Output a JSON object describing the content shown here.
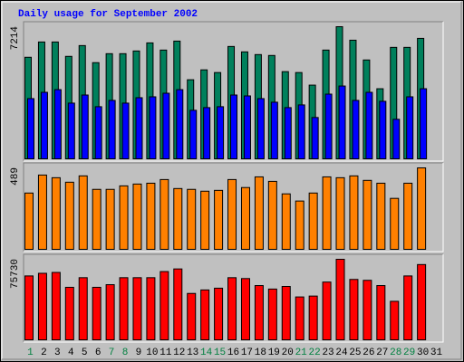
{
  "chart_data": {
    "type": "bar",
    "title": "Daily usage for September 2002",
    "title_color": "#0000ff",
    "categories": [
      "1",
      "2",
      "3",
      "4",
      "5",
      "6",
      "7",
      "8",
      "9",
      "10",
      "11",
      "12",
      "13",
      "14",
      "15",
      "16",
      "17",
      "18",
      "19",
      "20",
      "21",
      "22",
      "23",
      "24",
      "25",
      "26",
      "27",
      "28",
      "29",
      "30",
      "31"
    ],
    "category_label_colors": [
      "#008040",
      "#000000",
      "#000000",
      "#000000",
      "#000000",
      "#000000",
      "#008040",
      "#008040",
      "#000000",
      "#000000",
      "#000000",
      "#000000",
      "#000000",
      "#008040",
      "#008040",
      "#000000",
      "#000000",
      "#000000",
      "#000000",
      "#000000",
      "#008040",
      "#008040",
      "#000000",
      "#000000",
      "#000000",
      "#000000",
      "#000000",
      "#008040",
      "#008040",
      "#000000",
      "#000000"
    ],
    "panels": [
      {
        "ylim": [
          0,
          7214
        ],
        "yticks": [
          7214
        ],
        "series": [
          {
            "color": "#00805c",
            "values": [
              5545,
              6379,
              6379,
              5594,
              6183,
              5251,
              5741,
              5741,
              5889,
              6330,
              5938,
              6428,
              4318,
              4858,
              4711,
              6134,
              5839,
              5692,
              5643,
              4760,
              4711,
              4024,
              5938,
              7214,
              6477,
              5398,
              3827,
              6085,
              6085,
              6576,
              0
            ]
          },
          {
            "color": "#0000ff",
            "values": [
              3288,
              3631,
              3778,
              3042,
              3484,
              2846,
              3190,
              3042,
              3337,
              3386,
              3582,
              3778,
              2650,
              2797,
              2846,
              3484,
              3435,
              3288,
              3091,
              2797,
              2944,
              2257,
              3533,
              3975,
              3190,
              3631,
              3140,
              2159,
              3386,
              3828,
              0
            ]
          }
        ]
      },
      {
        "ylim": [
          0,
          489
        ],
        "yticks": [
          489
        ],
        "series": [
          {
            "color": "#ff8000",
            "values": [
              338,
              446,
              430,
              403,
              441,
              360,
              360,
              381,
              392,
              397,
              419,
              365,
              360,
              349,
              354,
              419,
              371,
              435,
              408,
              333,
              290,
              338,
              435,
              430,
              441,
              414,
              397,
              306,
              397,
              489,
              0
            ]
          }
        ]
      },
      {
        "ylim": [
          0,
          75730
        ],
        "yticks": [
          75730
        ],
        "series": [
          {
            "color": "#ff0000",
            "values": [
              60080,
              62548,
              63371,
              49380,
              58433,
              49380,
              51849,
              58433,
              58433,
              58433,
              64194,
              66663,
              43619,
              46911,
              48557,
              58433,
              57610,
              51026,
              47734,
              50203,
              40327,
              41150,
              54318,
              75730,
              56787,
              55964,
              51026,
              36212,
              60080,
              70778,
              0
            ]
          }
        ]
      }
    ]
  }
}
